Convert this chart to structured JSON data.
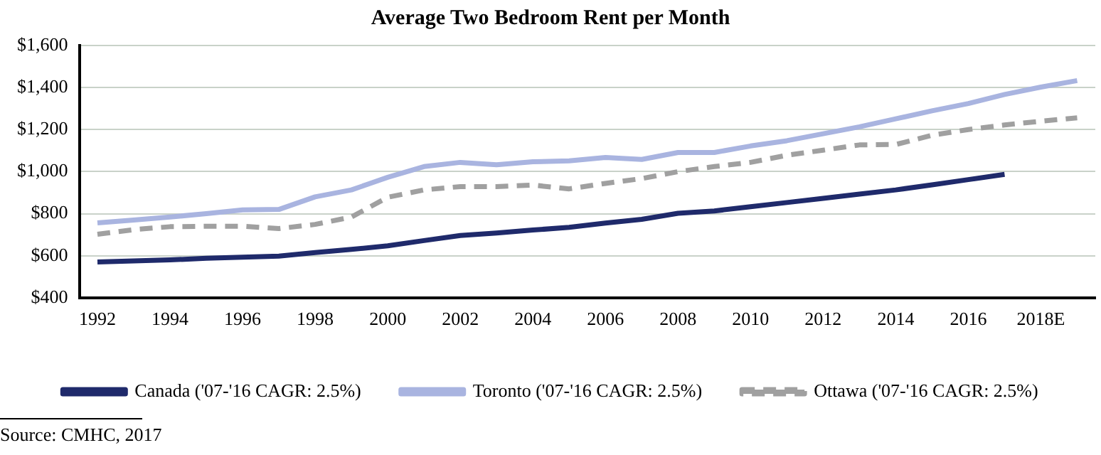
{
  "chart_data": {
    "type": "line",
    "title": "Average Two Bedroom Rent per Month",
    "categories": [
      "1992",
      null,
      "1994",
      null,
      "1996",
      null,
      "1998",
      null,
      "2000",
      null,
      "2002",
      null,
      "2004",
      null,
      "2006",
      null,
      "2008",
      null,
      "2010",
      null,
      "2012",
      null,
      "2014",
      null,
      "2016",
      null,
      "2018E",
      null
    ],
    "series": [
      {
        "name": "Canada ('07-'16 CAGR: 2.5%)",
        "color": "#1f2a6b",
        "line_style": "solid",
        "values": [
          570,
          575,
          580,
          588,
          593,
          598,
          615,
          630,
          647,
          672,
          696,
          708,
          722,
          735,
          755,
          773,
          802,
          813,
          833,
          853,
          873,
          893,
          913,
          937,
          962,
          987,
          null,
          null
        ]
      },
      {
        "name": "Toronto ('07-'16 CAGR: 2.5%)",
        "color": "#a9b4e0",
        "line_style": "solid",
        "values": [
          756,
          770,
          784,
          800,
          818,
          820,
          880,
          913,
          973,
          1024,
          1044,
          1033,
          1047,
          1051,
          1067,
          1058,
          1091,
          1091,
          1122,
          1147,
          1180,
          1213,
          1251,
          1289,
          1324,
          1367,
          1402,
          1433
        ]
      },
      {
        "name": "Ottawa ('07-'16 CAGR: 2.5%)",
        "color": "#a0a0a0",
        "line_style": "dashed",
        "values": [
          702,
          724,
          738,
          740,
          740,
          729,
          749,
          784,
          878,
          913,
          929,
          929,
          936,
          918,
          944,
          967,
          1000,
          1024,
          1044,
          1078,
          1102,
          1127,
          1129,
          1173,
          1200,
          1222,
          1240,
          1256
        ]
      }
    ],
    "ylim": [
      400,
      1600
    ],
    "yticks": [
      {
        "value": 400,
        "label": "$400"
      },
      {
        "value": 600,
        "label": "$600"
      },
      {
        "value": 800,
        "label": "$800"
      },
      {
        "value": 1000,
        "label": "$1,000"
      },
      {
        "value": 1200,
        "label": "$1,200"
      },
      {
        "value": 1400,
        "label": "$1,400"
      },
      {
        "value": 1600,
        "label": "$1,600"
      }
    ],
    "grid": "y",
    "legend": "bottom",
    "marker": "none",
    "annotations": [
      "Source: CMHC, 2017"
    ]
  }
}
